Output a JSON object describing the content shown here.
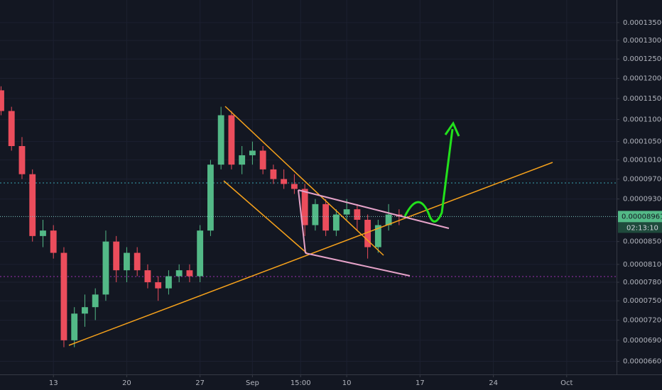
{
  "chart_data": {
    "type": "candlestick",
    "log_scale": true,
    "grid": true,
    "up_color": "#53b987",
    "down_color": "#eb4d5c",
    "xlim": [
      7.9,
      66.76
    ],
    "xticks": [
      13,
      20,
      27,
      {
        "value": 32,
        "label": "Sep"
      },
      {
        "value": 36.6,
        "label": "15:00"
      },
      {
        "value": 41,
        "label": "10"
      },
      {
        "value": 48,
        "label": "17"
      },
      {
        "value": 55,
        "label": "24"
      },
      {
        "value": 62,
        "label": "Oct"
      }
    ],
    "ylim": [
      6.42e-05,
      0.0001416
    ],
    "yticks": [
      {
        "value": 0.000135,
        "label": "0.00013500"
      },
      {
        "value": 0.00013,
        "label": "0.00013000"
      },
      {
        "value": 0.000125,
        "label": "0.00012500"
      },
      {
        "value": 0.00012,
        "label": "0.00012000"
      },
      {
        "value": 0.000115,
        "label": "0.00011500"
      },
      {
        "value": 0.00011,
        "label": "0.00011000"
      },
      {
        "value": 0.000105,
        "label": "0.00010500"
      },
      {
        "value": 0.000101,
        "label": "0.00010100"
      },
      {
        "value": 9.7e-05,
        "label": "0.00009700"
      },
      {
        "value": 9.3e-05,
        "label": "0.00009300"
      },
      {
        "value": 8.5e-05,
        "label": "0.00008500"
      },
      {
        "value": 8.1e-05,
        "label": "0.00008100"
      },
      {
        "value": 7.8e-05,
        "label": "0.00007800"
      },
      {
        "value": 7.5e-05,
        "label": "0.00007500"
      },
      {
        "value": 7.2e-05,
        "label": "0.00007200"
      },
      {
        "value": 6.9e-05,
        "label": "0.00006900"
      },
      {
        "value": 6.6e-05,
        "label": "0.00006600"
      }
    ],
    "last_price": {
      "value": 8.961e-05,
      "label": "0.00008961",
      "color": "#53b987"
    },
    "countdown": "02:13:10",
    "x": [
      8,
      9,
      10,
      11,
      12,
      13,
      14,
      15,
      16,
      17,
      18,
      19,
      20,
      21,
      22,
      23,
      24,
      25,
      26,
      27,
      28,
      29,
      30,
      31,
      32,
      33,
      34,
      35,
      36,
      37,
      38,
      39,
      40,
      41,
      42,
      43,
      44,
      45,
      46
    ],
    "open": [
      0.000117,
      0.000112,
      0.000104,
      9.8e-05,
      8.6e-05,
      8.7e-05,
      8.3e-05,
      6.9e-05,
      7.3e-05,
      7.4e-05,
      7.6e-05,
      8.5e-05,
      8e-05,
      8.3e-05,
      8e-05,
      7.8e-05,
      7.7e-05,
      7.9e-05,
      8e-05,
      7.9e-05,
      8.7e-05,
      0.0001,
      0.000111,
      0.0001,
      0.000102,
      0.000103,
      9.9e-05,
      9.7e-05,
      9.6e-05,
      9.5e-05,
      8.8e-05,
      9.2e-05,
      8.7e-05,
      9e-05,
      9.1e-05,
      8.9e-05,
      8.4e-05,
      8.8e-05,
      9e-05
    ],
    "high": [
      0.000118,
      0.000113,
      0.000106,
      9.9e-05,
      8.9e-05,
      8.8e-05,
      8.4e-05,
      7.4e-05,
      7.6e-05,
      7.7e-05,
      8.7e-05,
      8.6e-05,
      8.4e-05,
      8.4e-05,
      8.1e-05,
      7.9e-05,
      8e-05,
      8.1e-05,
      8.1e-05,
      8.8e-05,
      0.000101,
      0.000113,
      0.000112,
      0.000104,
      0.000105,
      0.000104,
      0.0001,
      9.9e-05,
      9.8e-05,
      9.6e-05,
      9.3e-05,
      9.3e-05,
      9.1e-05,
      9.3e-05,
      9.2e-05,
      9e-05,
      8.9e-05,
      9.2e-05,
      9.1e-05
    ],
    "low": [
      0.000111,
      0.000103,
      9.7e-05,
      8.5e-05,
      8.4e-05,
      8.2e-05,
      6.8e-05,
      6.8e-05,
      7.1e-05,
      7.2e-05,
      7.5e-05,
      7.8e-05,
      7.8e-05,
      7.9e-05,
      7.7e-05,
      7.5e-05,
      7.6e-05,
      7.8e-05,
      7.8e-05,
      7.8e-05,
      8.6e-05,
      9.9e-05,
      9.9e-05,
      9.8e-05,
      0.0001,
      9.8e-05,
      9.6e-05,
      9.5e-05,
      9.4e-05,
      8.6e-05,
      8.7e-05,
      8.6e-05,
      8.6e-05,
      8.9e-05,
      8.7e-05,
      8.2e-05,
      8.3e-05,
      8.7e-05,
      8.8e-05
    ],
    "close": [
      0.000112,
      0.000104,
      9.8e-05,
      8.6e-05,
      8.7e-05,
      8.3e-05,
      6.9e-05,
      7.3e-05,
      7.4e-05,
      7.6e-05,
      8.5e-05,
      8e-05,
      8.3e-05,
      8e-05,
      7.8e-05,
      7.7e-05,
      7.9e-05,
      8e-05,
      7.9e-05,
      8.7e-05,
      0.0001,
      0.000111,
      0.0001,
      0.000102,
      0.000103,
      9.9e-05,
      9.7e-05,
      9.6e-05,
      9.5e-05,
      8.8e-05,
      9.2e-05,
      8.7e-05,
      9e-05,
      9.1e-05,
      8.9e-05,
      8.4e-05,
      8.8e-05,
      9e-05,
      8.961e-05
    ]
  }
}
